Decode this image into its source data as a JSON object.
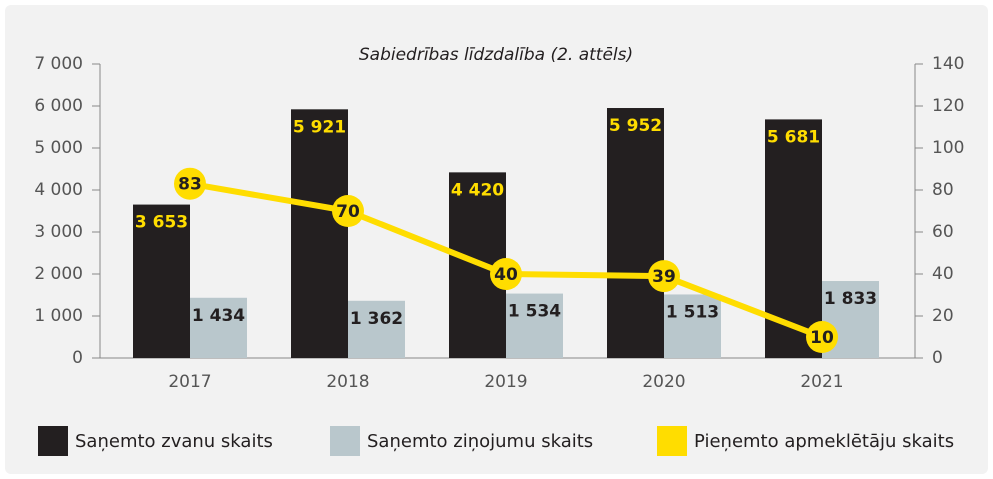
{
  "chart_data": {
    "type": "bar",
    "title": "Sabiedrības līdzdalība (2. attēls)",
    "categories": [
      "2017",
      "2018",
      "2019",
      "2020",
      "2021"
    ],
    "series": [
      {
        "name": "Saņemto zvanu skaits",
        "type": "bar",
        "color": "#231f20",
        "label_color": "#ffdd00",
        "values": [
          3653,
          5921,
          4420,
          5952,
          5681
        ],
        "value_labels": [
          "3 653",
          "5 921",
          "4 420",
          "5 952",
          "5 681"
        ]
      },
      {
        "name": "Saņemto ziņojumu skaits",
        "type": "bar",
        "color": "#b9c7cc",
        "label_color": "#231f20",
        "values": [
          1434,
          1362,
          1534,
          1513,
          1833
        ],
        "value_labels": [
          "1 434",
          "1 362",
          "1 534",
          "1 513",
          "1 833"
        ]
      },
      {
        "name": "Pieņemto apmeklētāju skaits",
        "type": "line",
        "axis": "y2",
        "color": "#ffdd00",
        "label_color": "#231f20",
        "values": [
          83,
          70,
          40,
          39,
          10
        ]
      }
    ],
    "ylim": [
      0,
      7000
    ],
    "yticks": [
      0,
      {
        "value": 1000,
        "label": "1 000"
      },
      {
        "value": 2000,
        "label": "2 000"
      },
      {
        "value": 3000,
        "label": "3 000"
      },
      {
        "value": 4000,
        "label": "4 000"
      },
      {
        "value": 5000,
        "label": "5 000"
      },
      {
        "value": 6000,
        "label": "6 000"
      },
      {
        "value": 7000,
        "label": "7 000"
      }
    ],
    "y2lim": [
      0,
      140
    ],
    "y2ticks": [
      0,
      20,
      40,
      60,
      80,
      100,
      120,
      140
    ],
    "legend": "bottom"
  }
}
